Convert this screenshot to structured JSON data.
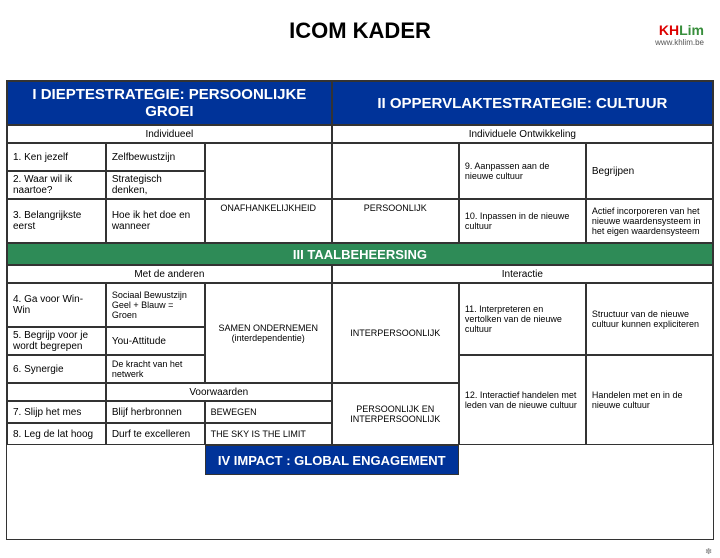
{
  "brand": {
    "kh": "KH",
    "lim": "Lim",
    "url": "www.khlim.be"
  },
  "title": "ICOM KADER",
  "layout": {
    "col_widths": [
      "14%",
      "14%",
      "18%",
      "18%",
      "18%",
      "18%"
    ],
    "row_heights": [
      "44px",
      "18px",
      "28px",
      "28px",
      "44px",
      "22px",
      "18px",
      "44px",
      "28px",
      "28px",
      "18px",
      "22px",
      "22px",
      "30px"
    ]
  },
  "headers": {
    "section1": "I   DIEPTESTRATEGIE: PERSOONLIJKE GROEI",
    "section2": "II   OPPERVLAKTESTRATEGIE: CULTUUR",
    "section3": "III   TAALBEHEERSING",
    "section4": "IV   IMPACT : GLOBAL ENGAGEMENT",
    "individueel": "Individueel",
    "indiv_ontw": "Individuele Ontwikkeling",
    "met_anderen": "Met de anderen",
    "interactie": "Interactie",
    "voorwaarden": "Voorwaarden"
  },
  "left_col": {
    "r1": "1. Ken jezelf",
    "r2": "2. Waar wil ik naartoe?",
    "r3": "3. Belangrijkste eerst",
    "r4": "4. Ga voor Win-Win",
    "r5": "5. Begrijp voor je wordt begrepen",
    "r6": "6. Synergie",
    "r7": "7. Slijp het mes",
    "r8": "8. Leg de lat hoog"
  },
  "col2": {
    "r1": "Zelfbewustzijn",
    "r2": "Strategisch denken,",
    "r3": "Hoe ik het doe en wanneer",
    "r4": "Sociaal Bewustzijn Geel + Blauw = Groen",
    "r5": "You-Attitude",
    "r6": "De kracht van het netwerk",
    "r7": "Blijf herbronnen",
    "r8": "Durf te excelleren"
  },
  "col3": {
    "onafh": "ONAFHANKELIJKHEID",
    "samen": "SAMEN ONDERNEMEN (interdependentie)",
    "bewegen": "BEWEGEN",
    "sky": "THE SKY IS THE LIMIT"
  },
  "col4": {
    "persoonlijk": "PERSOONLIJK",
    "interp": "INTERPERSOONLIJK",
    "both": "PERSOONLIJK EN INTERPERSOONLIJK"
  },
  "col5": {
    "c9": "9. Aanpassen aan de nieuwe cultuur",
    "c10": "10. Inpassen in de nieuwe cultuur",
    "c11": "11. Interpreteren en vertolken van de nieuwe cultuur",
    "c12": "12. Interactief handelen met leden van de nieuwe cultuur"
  },
  "col6": {
    "begrijpen": "Begrijpen",
    "actief": "Actief incorporeren van het nieuwe waardensysteem in het eigen waardensysteem",
    "structuur": "Structuur van de nieuwe cultuur kunnen expliciteren",
    "handelen": "Handelen met en in de nieuwe cultuur"
  },
  "colors": {
    "blue": "#003399",
    "green": "#2e8b57",
    "border": "#333333",
    "bg": "#ffffff"
  }
}
